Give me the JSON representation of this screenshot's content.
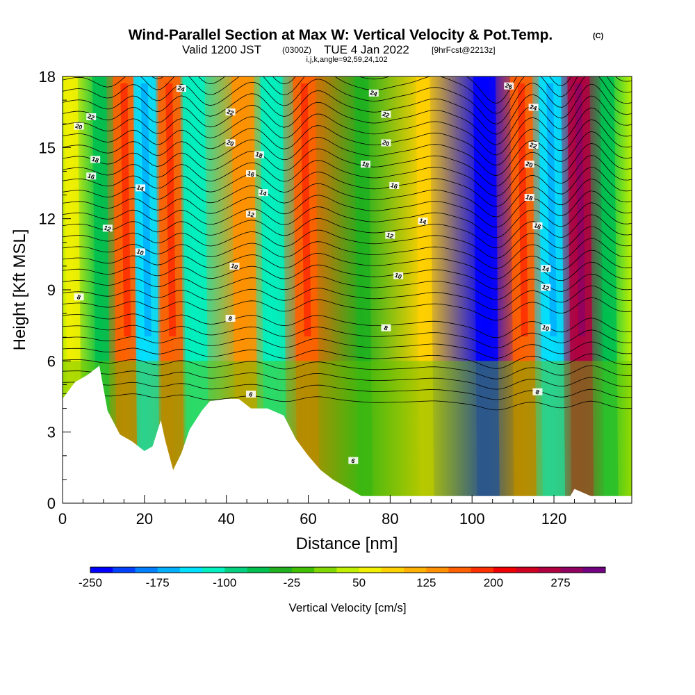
{
  "header": {
    "title": "Wind-Parallel Section at Max W: Vertical Velocity & Pot.Temp.",
    "title_mark": "(C)",
    "valid_prefix": "Valid 1200 JST",
    "valid_utc": "(0300Z)",
    "valid_date": "TUE 4 Jan 2022",
    "forecast_tag": "[9hrFcst@2213z]",
    "params": "i,j,k,angle=92,59,24,102"
  },
  "colorbar": {
    "title": "Vertical Velocity [cm/s]",
    "tick_labels": [
      "-250",
      "-175",
      "-100",
      "-25",
      "50",
      "125",
      "200",
      "275"
    ],
    "tick_values": [
      -250,
      -175,
      -100,
      -25,
      50,
      125,
      200,
      275
    ],
    "min": -250,
    "max": 300,
    "step": 25,
    "colors": [
      "#0000ff",
      "#0040ff",
      "#0080ff",
      "#00b0ff",
      "#00e0ff",
      "#00f0c0",
      "#00d080",
      "#00c050",
      "#20b020",
      "#40c000",
      "#80d800",
      "#c0f000",
      "#f0f000",
      "#ffd000",
      "#ffb000",
      "#ff9000",
      "#ff6000",
      "#ff3000",
      "#f00000",
      "#d00020",
      "#b00040",
      "#900060",
      "#700080"
    ]
  },
  "chart_data": {
    "type": "heatmap",
    "title": "Wind-Parallel Section at Max W: Vertical Velocity & Pot.Temp.",
    "xlabel": "Distance [nm]",
    "ylabel": "Height [Kft MSL]",
    "xlim": [
      0,
      139
    ],
    "ylim": [
      0,
      18
    ],
    "x_ticks": [
      0,
      20,
      40,
      60,
      80,
      100,
      120
    ],
    "y_ticks": [
      0,
      3,
      6,
      9,
      12,
      15,
      18
    ],
    "field": "Vertical Velocity [cm/s]",
    "wave_bands": [
      {
        "x": 2,
        "sign": "up",
        "peak": 50
      },
      {
        "x": 9,
        "sign": "down",
        "peak": -75
      },
      {
        "x": 15,
        "sign": "up",
        "peak": 150
      },
      {
        "x": 20,
        "sign": "down",
        "peak": -150
      },
      {
        "x": 26,
        "sign": "up",
        "peak": 150
      },
      {
        "x": 32,
        "sign": "down",
        "peak": -125
      },
      {
        "x": 44,
        "sign": "up",
        "peak": 125
      },
      {
        "x": 51,
        "sign": "down",
        "peak": -125
      },
      {
        "x": 59,
        "sign": "up",
        "peak": 150
      },
      {
        "x": 73,
        "sign": "down",
        "peak": -50
      },
      {
        "x": 88,
        "sign": "up",
        "peak": 75
      },
      {
        "x": 103,
        "sign": "down",
        "peak": -250
      },
      {
        "x": 112,
        "sign": "up",
        "peak": 150
      },
      {
        "x": 119,
        "sign": "down",
        "peak": -150
      },
      {
        "x": 126,
        "sign": "up",
        "peak": 250
      },
      {
        "x": 133,
        "sign": "down",
        "peak": -75
      }
    ],
    "isentropes": {
      "label": "Pot.Temp.",
      "levels": [
        6,
        8,
        10,
        12,
        14,
        16,
        18,
        20,
        22,
        24,
        26
      ],
      "labels_shown": [
        {
          "x": 7,
          "y": 16.3,
          "text": "22"
        },
        {
          "x": 4,
          "y": 15.9,
          "text": "20"
        },
        {
          "x": 8,
          "y": 14.5,
          "text": "18"
        },
        {
          "x": 7,
          "y": 13.8,
          "text": "16"
        },
        {
          "x": 11,
          "y": 11.6,
          "text": "12"
        },
        {
          "x": 4,
          "y": 8.7,
          "text": "8"
        },
        {
          "x": 19,
          "y": 13.3,
          "text": "14"
        },
        {
          "x": 19,
          "y": 10.6,
          "text": "10"
        },
        {
          "x": 29,
          "y": 17.5,
          "text": "24"
        },
        {
          "x": 41,
          "y": 16.5,
          "text": "22"
        },
        {
          "x": 41,
          "y": 15.2,
          "text": "20"
        },
        {
          "x": 48,
          "y": 14.7,
          "text": "18"
        },
        {
          "x": 46,
          "y": 13.9,
          "text": "16"
        },
        {
          "x": 49,
          "y": 13.1,
          "text": "14"
        },
        {
          "x": 46,
          "y": 12.2,
          "text": "12"
        },
        {
          "x": 42,
          "y": 10.0,
          "text": "10"
        },
        {
          "x": 41,
          "y": 7.8,
          "text": "8"
        },
        {
          "x": 46,
          "y": 4.6,
          "text": "6"
        },
        {
          "x": 76,
          "y": 17.3,
          "text": "24"
        },
        {
          "x": 79,
          "y": 16.4,
          "text": "22"
        },
        {
          "x": 79,
          "y": 15.2,
          "text": "20"
        },
        {
          "x": 74,
          "y": 14.3,
          "text": "18"
        },
        {
          "x": 81,
          "y": 13.4,
          "text": "16"
        },
        {
          "x": 88,
          "y": 11.9,
          "text": "14"
        },
        {
          "x": 80,
          "y": 11.3,
          "text": "12"
        },
        {
          "x": 82,
          "y": 9.6,
          "text": "10"
        },
        {
          "x": 79,
          "y": 7.4,
          "text": "8"
        },
        {
          "x": 71,
          "y": 1.8,
          "text": "6"
        },
        {
          "x": 109,
          "y": 17.6,
          "text": "26"
        },
        {
          "x": 115,
          "y": 16.7,
          "text": "24"
        },
        {
          "x": 115,
          "y": 15.1,
          "text": "22"
        },
        {
          "x": 114,
          "y": 14.3,
          "text": "20"
        },
        {
          "x": 114,
          "y": 12.9,
          "text": "18"
        },
        {
          "x": 116,
          "y": 11.7,
          "text": "16"
        },
        {
          "x": 118,
          "y": 9.9,
          "text": "14"
        },
        {
          "x": 118,
          "y": 9.1,
          "text": "12"
        },
        {
          "x": 118,
          "y": 7.4,
          "text": "10"
        },
        {
          "x": 116,
          "y": 4.7,
          "text": "8"
        }
      ]
    },
    "terrain_height_kft": [
      [
        0,
        4.4
      ],
      [
        3,
        5.1
      ],
      [
        6,
        5.4
      ],
      [
        9,
        5.8
      ],
      [
        11,
        3.9
      ],
      [
        14,
        2.9
      ],
      [
        17,
        2.6
      ],
      [
        20,
        2.2
      ],
      [
        22,
        2.4
      ],
      [
        24,
        3.5
      ],
      [
        25,
        2.7
      ],
      [
        27,
        1.4
      ],
      [
        29,
        2.1
      ],
      [
        31,
        3.1
      ],
      [
        34,
        3.9
      ],
      [
        36,
        4.3
      ],
      [
        40,
        4.4
      ],
      [
        43,
        4.4
      ],
      [
        46,
        4.0
      ],
      [
        50,
        4.0
      ],
      [
        54,
        3.7
      ],
      [
        57,
        2.7
      ],
      [
        60,
        2.0
      ],
      [
        63,
        1.4
      ],
      [
        66,
        1.0
      ],
      [
        70,
        0.6
      ],
      [
        73,
        0.3
      ],
      [
        80,
        0.3
      ],
      [
        100,
        0.3
      ],
      [
        124,
        0.3
      ],
      [
        125,
        0.6
      ],
      [
        129,
        0.3
      ],
      [
        139,
        0.3
      ]
    ]
  }
}
